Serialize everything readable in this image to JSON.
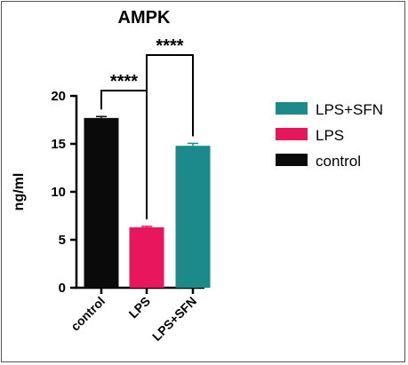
{
  "chart_data": {
    "type": "bar",
    "title": "AMPK",
    "ylabel": "ng/ml",
    "xlabel": "",
    "categories": [
      "control",
      "LPS",
      "LPS+SFN"
    ],
    "values": [
      17.7,
      6.3,
      14.8
    ],
    "errors": [
      0.15,
      0.1,
      0.25
    ],
    "colors": [
      "#0a0a0a",
      "#e8175d",
      "#1c8a8a"
    ],
    "ylim": [
      0,
      20
    ],
    "yticks": [
      "0",
      "5",
      "10",
      "15",
      "20"
    ],
    "legend": {
      "placement": "right",
      "entries": [
        {
          "label": "LPS+SFN",
          "color": "#1c8a8a"
        },
        {
          "label": "LPS",
          "color": "#e8175d"
        },
        {
          "label": "control",
          "color": "#0a0a0a"
        }
      ]
    },
    "significance": [
      {
        "from": 0,
        "to": 1,
        "label": "****"
      },
      {
        "from": 1,
        "to": 2,
        "label": "****"
      }
    ],
    "grid": false
  }
}
